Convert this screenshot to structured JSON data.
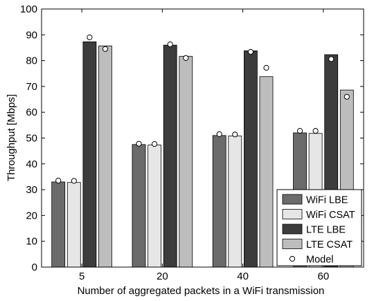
{
  "chart_data": {
    "type": "bar",
    "title": "",
    "xlabel": "Number of aggregated packets in a WiFi transmission",
    "ylabel": "Throughput [Mbps]",
    "ylim": [
      0,
      100
    ],
    "yticks": [
      0,
      10,
      20,
      30,
      40,
      50,
      60,
      70,
      80,
      90,
      100
    ],
    "categories": [
      "5",
      "20",
      "40",
      "60"
    ],
    "series": [
      {
        "name": "WiFi LBE",
        "values": [
          33.0,
          47.5,
          51.0,
          52.0
        ],
        "color": "#6b6b6b"
      },
      {
        "name": "WiFi CSAT",
        "values": [
          32.8,
          47.3,
          50.8,
          51.8
        ],
        "color": "#e6e6e6"
      },
      {
        "name": "LTE LBE",
        "values": [
          87.3,
          86.0,
          83.8,
          82.3
        ],
        "color": "#3c3c3c"
      },
      {
        "name": "LTE CSAT",
        "values": [
          85.7,
          81.7,
          73.8,
          68.6
        ],
        "color": "#bdbdbd"
      }
    ],
    "model": {
      "name": "Model",
      "values": [
        [
          33.5,
          33.4,
          89.0,
          84.5
        ],
        [
          47.8,
          47.7,
          86.3,
          81.0
        ],
        [
          51.5,
          51.4,
          83.4,
          77.2
        ],
        [
          52.8,
          52.8,
          80.6,
          66.0
        ]
      ]
    },
    "grid": false,
    "legend_position": "bottom-right"
  }
}
